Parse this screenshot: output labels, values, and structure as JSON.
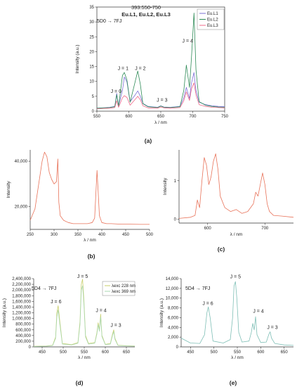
{
  "charts": [
    {
      "id": "a",
      "caption": "(a)",
      "title": "393:550-750",
      "subtitle": "Eu.L1, Eu.L2, Eu.L3",
      "transition": "5D0 → 7FJ",
      "xlabel": "λ / nm",
      "ylabel": "Intensity (a.u.)",
      "xlim": [
        550,
        750
      ],
      "ylim": [
        0,
        35
      ],
      "xticks": [
        550,
        600,
        650,
        700,
        750
      ],
      "yticks": [
        0,
        5,
        10,
        15,
        20,
        25,
        30,
        35
      ],
      "legend": [
        "Eu.L1",
        "Eu.L2",
        "Eu.L3"
      ],
      "annotations": [
        {
          "text": "J = 0",
          "x": 580,
          "y": 6.2
        },
        {
          "text": "J = 1",
          "x": 591,
          "y": 13.8
        },
        {
          "text": "J = 2",
          "x": 618,
          "y": 13.8
        },
        {
          "text": "J = 3",
          "x": 652,
          "y": 3.2
        },
        {
          "text": "J = 4",
          "x": 692,
          "y": 23.0
        }
      ]
    },
    {
      "id": "b",
      "caption": "(b)",
      "xlabel": "λ / nm",
      "ylabel": "Intensity",
      "xlim": [
        250,
        500
      ],
      "ylim": [
        10000,
        45000
      ],
      "xticks": [
        250,
        300,
        350,
        400,
        450,
        500
      ],
      "yticks": [
        20000,
        40000
      ],
      "ytick_labels": [
        "20,000",
        "40,000"
      ]
    },
    {
      "id": "c",
      "caption": "(c)",
      "xlabel": "λ / nm",
      "ylabel": "Intensity",
      "xlim": [
        550,
        750
      ],
      "ylim": [
        -0.1,
        1.8
      ],
      "xticks": [
        600,
        700
      ],
      "yticks": [
        0,
        1
      ],
      "ytick_labels": [
        "0",
        "1"
      ]
    },
    {
      "id": "d",
      "caption": "(d)",
      "transition": "5D4 → 7FJ",
      "xlabel": "λ / nm",
      "ylabel": "Intensity (a.u.)",
      "xlim": [
        430,
        670
      ],
      "ylim": [
        0,
        2400000
      ],
      "xticks": [
        450,
        500,
        550,
        600,
        650
      ],
      "yticks": [
        0,
        200000,
        400000,
        600000,
        800000,
        1000000,
        1200000,
        1400000,
        1600000,
        1800000,
        2000000,
        2200000,
        2400000
      ],
      "ytick_labels": [
        "0",
        "200,000",
        "400,000",
        "600,000",
        "800,000",
        "1,000,000",
        "1,200,000",
        "1,400,000",
        "1,600,000",
        "1,800,000",
        "2,000,000",
        "2,200,000",
        "2,400,000"
      ],
      "legend": [
        "λexc 228 nm",
        "λexc 369 nm"
      ],
      "annotations": [
        {
          "text": "J = 6",
          "x": 483,
          "y": 1530000
        },
        {
          "text": "J = 5",
          "x": 546,
          "y": 2420000
        },
        {
          "text": "J = 4",
          "x": 590,
          "y": 1230000
        },
        {
          "text": "J = 3",
          "x": 625,
          "y": 700000
        }
      ]
    },
    {
      "id": "e",
      "caption": "(e)",
      "transition": "5D4 → 7FJ",
      "xlabel": "λ / nm",
      "ylabel": "Intensity (a.u.)",
      "xlim": [
        430,
        670
      ],
      "ylim": [
        0,
        14000
      ],
      "xticks": [
        450,
        500,
        550,
        600,
        650
      ],
      "yticks": [
        0,
        2000,
        4000,
        6000,
        8000,
        10000,
        12000,
        14000
      ],
      "ytick_labels": [
        "0",
        "2,000",
        "4,000",
        "6,000",
        "8,000",
        "10,000",
        "12,000",
        "14,000"
      ],
      "annotations": [
        {
          "text": "J = 6",
          "x": 487,
          "y": 8600
        },
        {
          "text": "J = 5",
          "x": 546,
          "y": 14100
        },
        {
          "text": "J = 4",
          "x": 595,
          "y": 7000
        },
        {
          "text": "J = 3",
          "x": 625,
          "y": 3700
        }
      ]
    }
  ],
  "chart_data": [
    {
      "type": "line",
      "panel": "a",
      "series": [
        {
          "name": "Eu.L1",
          "color": "#7b6fd6",
          "x": [
            550,
            570,
            578,
            581,
            584,
            590,
            593,
            597,
            602,
            610,
            614,
            618,
            622,
            630,
            645,
            650,
            655,
            665,
            680,
            686,
            690,
            695,
            698,
            702,
            705,
            710,
            720,
            730,
            740,
            750
          ],
          "y": [
            1,
            1.3,
            1.6,
            6.0,
            1.8,
            7.0,
            11.5,
            9.8,
            3.2,
            5.5,
            6.8,
            5.0,
            2.6,
            1.6,
            1.3,
            1.8,
            1.4,
            1.3,
            1.6,
            4.5,
            8.0,
            4.2,
            9.5,
            13.0,
            7.0,
            3.0,
            2.2,
            1.8,
            1.6,
            1.5
          ]
        },
        {
          "name": "Eu.L2",
          "color": "#2e8b57",
          "x": [
            550,
            570,
            578,
            581,
            584,
            590,
            593,
            597,
            602,
            610,
            614,
            618,
            622,
            630,
            645,
            650,
            655,
            665,
            680,
            686,
            690,
            695,
            698,
            702,
            705,
            710,
            720,
            730,
            740,
            750
          ],
          "y": [
            1,
            1.2,
            1.5,
            5.5,
            1.6,
            12.0,
            13.0,
            10.5,
            3.0,
            10.0,
            13.5,
            9.0,
            2.5,
            1.5,
            1.2,
            1.7,
            1.3,
            1.2,
            1.5,
            7.0,
            15.5,
            8.0,
            18.0,
            33.0,
            14.0,
            3.2,
            2.0,
            1.6,
            1.4,
            1.3
          ]
        },
        {
          "name": "Eu.L3",
          "color": "#f06a8a",
          "x": [
            550,
            570,
            578,
            581,
            584,
            590,
            593,
            597,
            602,
            610,
            614,
            618,
            622,
            630,
            645,
            650,
            655,
            665,
            680,
            686,
            690,
            695,
            698,
            702,
            705,
            710,
            720,
            730,
            740,
            750
          ],
          "y": [
            0.8,
            1.0,
            1.2,
            3.5,
            1.3,
            4.5,
            5.2,
            4.6,
            2.0,
            4.0,
            5.0,
            3.8,
            1.8,
            1.1,
            1.0,
            1.4,
            1.1,
            1.0,
            1.2,
            3.5,
            6.5,
            3.6,
            7.5,
            9.5,
            5.5,
            2.2,
            1.6,
            1.3,
            1.2,
            1.1
          ]
        }
      ]
    },
    {
      "type": "line",
      "panel": "b",
      "series": [
        {
          "color": "#e8735a",
          "x": [
            250,
            260,
            265,
            270,
            275,
            280,
            285,
            290,
            295,
            300,
            305,
            308,
            310,
            313,
            320,
            330,
            340,
            350,
            360,
            370,
            380,
            385,
            390,
            395,
            400,
            410,
            420,
            440,
            460,
            480,
            500
          ],
          "y": [
            14000,
            19000,
            26000,
            33000,
            40000,
            44000,
            42000,
            35000,
            32000,
            30000,
            31000,
            41000,
            22000,
            16000,
            14000,
            13000,
            12500,
            12500,
            12500,
            12500,
            13000,
            15000,
            36000,
            16000,
            13000,
            12500,
            12500,
            12300,
            12300,
            12200,
            12200
          ]
        }
      ]
    },
    {
      "type": "line",
      "panel": "c",
      "series": [
        {
          "color": "#e8735a",
          "x": [
            550,
            570,
            578,
            582,
            586,
            590,
            594,
            598,
            602,
            606,
            610,
            614,
            618,
            622,
            630,
            640,
            650,
            660,
            670,
            680,
            684,
            688,
            692,
            696,
            700,
            704,
            708,
            715,
            730,
            750
          ],
          "y": [
            0.02,
            0.05,
            0.1,
            0.5,
            0.3,
            1.0,
            1.6,
            1.4,
            0.9,
            1.1,
            1.5,
            1.7,
            1.3,
            0.6,
            0.3,
            0.2,
            0.25,
            0.15,
            0.2,
            0.4,
            0.7,
            0.6,
            0.9,
            1.2,
            0.9,
            0.4,
            0.2,
            0.1,
            0.08,
            0.05
          ]
        }
      ]
    },
    {
      "type": "line",
      "panel": "d",
      "series": [
        {
          "name": "λexc 228 nm",
          "color": "#c9cf6a",
          "x": [
            430,
            460,
            475,
            482,
            485,
            488,
            492,
            498,
            520,
            535,
            540,
            543,
            546,
            549,
            553,
            560,
            575,
            580,
            583,
            586,
            589,
            592,
            600,
            612,
            617,
            620,
            623,
            630,
            650,
            670
          ],
          "y": [
            20000,
            30000,
            60000,
            350000,
            1200000,
            1450000,
            900000,
            120000,
            80000,
            150000,
            900000,
            2200000,
            2380000,
            1700000,
            400000,
            120000,
            150000,
            500000,
            850000,
            600000,
            1150000,
            400000,
            90000,
            120000,
            450000,
            600000,
            300000,
            60000,
            40000,
            30000
          ]
        },
        {
          "name": "λexc 369 nm",
          "color": "#a8d8b0",
          "x": [
            430,
            460,
            475,
            482,
            485,
            488,
            492,
            498,
            520,
            535,
            540,
            543,
            546,
            549,
            553,
            560,
            575,
            580,
            583,
            586,
            589,
            592,
            600,
            612,
            617,
            620,
            623,
            630,
            650,
            670
          ],
          "y": [
            15000,
            25000,
            50000,
            300000,
            1050000,
            1300000,
            800000,
            100000,
            70000,
            130000,
            800000,
            2000000,
            2150000,
            1550000,
            350000,
            100000,
            130000,
            450000,
            780000,
            550000,
            1050000,
            360000,
            80000,
            100000,
            400000,
            540000,
            260000,
            50000,
            35000,
            25000
          ]
        }
      ]
    },
    {
      "type": "line",
      "panel": "e",
      "series": [
        {
          "color": "#7fbfb6",
          "x": [
            430,
            450,
            470,
            480,
            485,
            488,
            492,
            498,
            520,
            535,
            540,
            543,
            546,
            549,
            553,
            560,
            575,
            580,
            583,
            586,
            589,
            592,
            600,
            612,
            617,
            620,
            623,
            630,
            650,
            670
          ],
          "y": [
            1800,
            800,
            700,
            2500,
            7000,
            8200,
            6000,
            1200,
            800,
            1500,
            6000,
            12500,
            13400,
            10000,
            3000,
            1000,
            1200,
            3000,
            4800,
            3500,
            6200,
            2500,
            900,
            1000,
            2500,
            3100,
            1800,
            700,
            400,
            300
          ]
        }
      ]
    }
  ]
}
